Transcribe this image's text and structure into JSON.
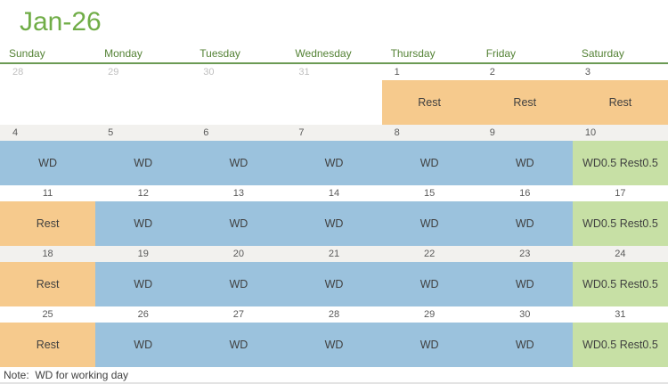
{
  "title": "Jan-26",
  "weekdays": [
    "Sunday",
    "Monday",
    "Tuesday",
    "Wednesday",
    "Thursday",
    "Friday",
    "Saturday"
  ],
  "note": "Note:  WD for working day",
  "cell_labels": {
    "rest": "Rest",
    "wd": "WD",
    "half": "WD0.5 Rest0.5"
  },
  "colors": {
    "title_green": "#70AD47",
    "header_green": "#548235",
    "line_green": "#6B9A54",
    "rest_bg": "#F6CA8D",
    "wd_bg": "#9BC2DD",
    "half_bg": "#C7E0A5",
    "shaded_row_bg": "#F2F1EE",
    "date_text": "#595959",
    "date_muted": "#C0C0C0",
    "cell_text": "#404040",
    "bottom_line": "#E3E3E3"
  },
  "weeks": [
    {
      "shaded": false,
      "date_align": "left",
      "days": [
        {
          "date": "28",
          "outside": true,
          "kind": "none"
        },
        {
          "date": "29",
          "outside": true,
          "kind": "none"
        },
        {
          "date": "30",
          "outside": true,
          "kind": "none"
        },
        {
          "date": "31",
          "outside": true,
          "kind": "none"
        },
        {
          "date": "1",
          "outside": false,
          "kind": "rest"
        },
        {
          "date": "2",
          "outside": false,
          "kind": "rest"
        },
        {
          "date": "3",
          "outside": false,
          "kind": "rest"
        }
      ]
    },
    {
      "shaded": true,
      "date_align": "left",
      "days": [
        {
          "date": "4",
          "outside": false,
          "kind": "wd"
        },
        {
          "date": "5",
          "outside": false,
          "kind": "wd"
        },
        {
          "date": "6",
          "outside": false,
          "kind": "wd"
        },
        {
          "date": "7",
          "outside": false,
          "kind": "wd"
        },
        {
          "date": "8",
          "outside": false,
          "kind": "wd"
        },
        {
          "date": "9",
          "outside": false,
          "kind": "wd"
        },
        {
          "date": "10",
          "outside": false,
          "kind": "half"
        }
      ]
    },
    {
      "shaded": false,
      "date_align": "center",
      "days": [
        {
          "date": "11",
          "outside": false,
          "kind": "rest"
        },
        {
          "date": "12",
          "outside": false,
          "kind": "wd"
        },
        {
          "date": "13",
          "outside": false,
          "kind": "wd"
        },
        {
          "date": "14",
          "outside": false,
          "kind": "wd"
        },
        {
          "date": "15",
          "outside": false,
          "kind": "wd"
        },
        {
          "date": "16",
          "outside": false,
          "kind": "wd"
        },
        {
          "date": "17",
          "outside": false,
          "kind": "half"
        }
      ]
    },
    {
      "shaded": true,
      "date_align": "center",
      "days": [
        {
          "date": "18",
          "outside": false,
          "kind": "rest"
        },
        {
          "date": "19",
          "outside": false,
          "kind": "wd"
        },
        {
          "date": "20",
          "outside": false,
          "kind": "wd"
        },
        {
          "date": "21",
          "outside": false,
          "kind": "wd"
        },
        {
          "date": "22",
          "outside": false,
          "kind": "wd"
        },
        {
          "date": "23",
          "outside": false,
          "kind": "wd"
        },
        {
          "date": "24",
          "outside": false,
          "kind": "half"
        }
      ]
    },
    {
      "shaded": false,
      "date_align": "center",
      "days": [
        {
          "date": "25",
          "outside": false,
          "kind": "rest"
        },
        {
          "date": "26",
          "outside": false,
          "kind": "wd"
        },
        {
          "date": "27",
          "outside": false,
          "kind": "wd"
        },
        {
          "date": "28",
          "outside": false,
          "kind": "wd"
        },
        {
          "date": "29",
          "outside": false,
          "kind": "wd"
        },
        {
          "date": "30",
          "outside": false,
          "kind": "wd"
        },
        {
          "date": "31",
          "outside": false,
          "kind": "half"
        }
      ]
    }
  ]
}
